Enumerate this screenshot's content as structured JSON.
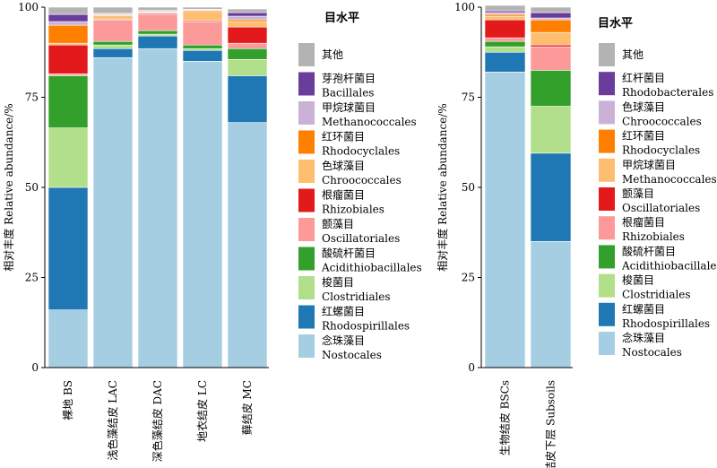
{
  "chart_data": [
    {
      "type": "bar",
      "stacked": true,
      "ylabel": "相对丰度 Relative abundance/%",
      "ylim": [
        0,
        100
      ],
      "yticks": [
        0,
        25,
        50,
        75,
        100
      ],
      "categories": [
        "裸地 BS",
        "浅色藻结皮 LAC",
        "深色藻结皮 DAC",
        "地衣结皮 LC",
        "藓结皮 MC"
      ],
      "legend_title": "目水平",
      "series": [
        {
          "name": "念珠藻目 Nostocales",
          "cn": "念珠藻目",
          "en": "Nostocales",
          "color": "#a6cee3",
          "values": [
            16,
            86,
            88.5,
            85,
            68
          ]
        },
        {
          "name": "红螺菌目 Rhodospirillales",
          "cn": "红螺菌目",
          "en": "Rhodospirillales",
          "color": "#1f78b4",
          "values": [
            34,
            2.5,
            3.5,
            3,
            13
          ]
        },
        {
          "name": "梭菌目 Clostridiales",
          "cn": "梭菌目",
          "en": "Clostridiales",
          "color": "#b2df8a",
          "values": [
            16.5,
            1,
            0.5,
            0.5,
            4.5
          ]
        },
        {
          "name": "酸硫杆菌目 Acidithiobacillales",
          "cn": "酸硫杆菌目",
          "en": "Acidithiobacillales",
          "color": "#33a02c",
          "values": [
            14.5,
            1,
            1,
            1,
            3
          ]
        },
        {
          "name": "颤藻目 Oscillatoriales",
          "cn": "颤藻目",
          "en": "Oscillatoriales",
          "color": "#fb9a99",
          "values": [
            0.5,
            6,
            4.5,
            6.5,
            1.5
          ]
        },
        {
          "name": "根瘤菌目 Rhizobiales",
          "cn": "根瘤菌目",
          "en": "Rhizobiales",
          "color": "#e31a1c",
          "values": [
            8,
            0.2,
            0.3,
            0.3,
            4.5
          ]
        },
        {
          "name": "色球藻目 Chroococcales",
          "cn": "色球藻目",
          "en": "Chroococcales",
          "color": "#fdbf6f",
          "values": [
            0.5,
            1,
            0.2,
            2.5,
            1.5
          ]
        },
        {
          "name": "红环菌目 Rhodocyclales",
          "cn": "红环菌目",
          "en": "Rhodocyclales",
          "color": "#ff7f00",
          "values": [
            5,
            0.2,
            0.2,
            0.3,
            0.5
          ]
        },
        {
          "name": "甲烷球菌目 Methanococcales",
          "cn": "甲烷球菌目",
          "en": "Methanococcales",
          "color": "#cab2d6",
          "values": [
            1,
            0.3,
            0.3,
            0.2,
            1
          ]
        },
        {
          "name": "芽孢杆菌目 Bacillales",
          "cn": "芽孢杆菌目",
          "en": "Bacillales",
          "color": "#6a3d9a",
          "values": [
            2,
            0.1,
            0.1,
            0.1,
            1
          ]
        },
        {
          "name": "其他",
          "cn": "其他",
          "en": "",
          "color": "#b3b3b3",
          "values": [
            2,
            1.7,
            0.9,
            0.6,
            1
          ]
        }
      ]
    },
    {
      "type": "bar",
      "stacked": true,
      "ylabel": "相对丰度 Relative abundance/%",
      "ylim": [
        0,
        100
      ],
      "yticks": [
        0,
        25,
        50,
        75,
        100
      ],
      "categories": [
        "生物结皮 BSCs",
        "结皮下层 Subsoils"
      ],
      "legend_title": "目水平",
      "series": [
        {
          "name": "念珠藻目 Nostocales",
          "cn": "念珠藻目",
          "en": "Nostocales",
          "color": "#a6cee3",
          "values": [
            82,
            35
          ]
        },
        {
          "name": "红螺菌目 Rhodospirillales",
          "cn": "红螺菌目",
          "en": "Rhodospirillales",
          "color": "#1f78b4",
          "values": [
            5.5,
            24.5
          ]
        },
        {
          "name": "梭菌目 Clostridiales",
          "cn": "梭菌目",
          "en": "Clostridiales",
          "color": "#b2df8a",
          "values": [
            1.5,
            13
          ]
        },
        {
          "name": "酸硫杆菌目 Acidithiobacillales",
          "cn": "酸硫杆菌目",
          "en": "Acidithiobacillales",
          "color": "#33a02c",
          "values": [
            1.5,
            10
          ]
        },
        {
          "name": "根瘤菌目 Rhizobiales",
          "cn": "根瘤菌目",
          "en": "Rhizobiales",
          "color": "#fb9a99",
          "values": [
            1,
            6.5
          ]
        },
        {
          "name": "颤藻目 Oscillatoriales",
          "cn": "颤藻目",
          "en": "Oscillatoriales",
          "color": "#e31a1c",
          "values": [
            5,
            0.5
          ]
        },
        {
          "name": "甲烷球菌目 Methanococcales",
          "cn": "甲烷球菌目",
          "en": "Methanococcales",
          "color": "#fdbf6f",
          "values": [
            1,
            3.5
          ]
        },
        {
          "name": "红环菌目 Rhodocyclales",
          "cn": "红环菌目",
          "en": "Rhodocyclales",
          "color": "#ff7f00",
          "values": [
            0.5,
            3.5
          ]
        },
        {
          "name": "色球藻目 Chroococcales",
          "cn": "色球藻目",
          "en": "Chroococcales",
          "color": "#cab2d6",
          "values": [
            0.5,
            0.5
          ]
        },
        {
          "name": "红杆菌目 Rhodobacterales",
          "cn": "红杆菌目",
          "en": "Rhodobacterales",
          "color": "#6a3d9a",
          "values": [
            0.5,
            1.5
          ]
        },
        {
          "name": "其他",
          "cn": "其他",
          "en": "",
          "color": "#b3b3b3",
          "values": [
            1.5,
            1.5
          ]
        }
      ]
    }
  ]
}
